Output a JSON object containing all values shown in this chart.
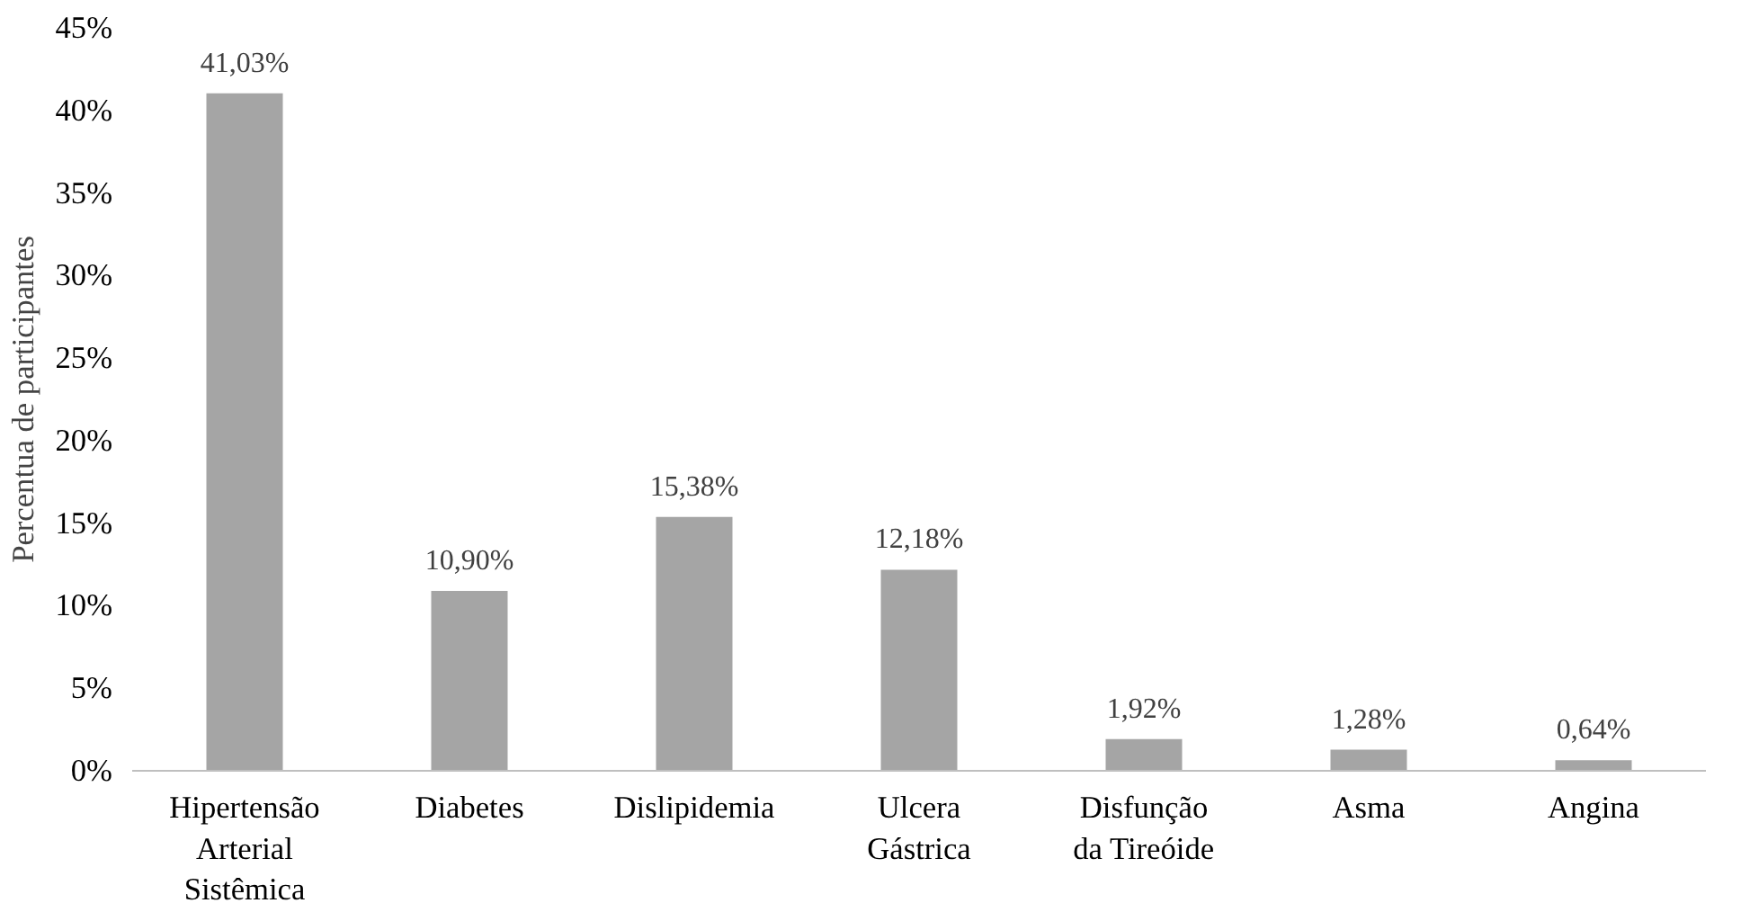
{
  "chart_data": {
    "type": "bar",
    "ylabel": "Percentua de participantes",
    "categories": [
      "Hipertensão\nArterial\nSistêmica",
      "Diabetes",
      "Dislipidemia",
      "Ulcera\nGástrica",
      "Disfunção\nda Tireóide",
      "Asma",
      "Angina"
    ],
    "values": [
      41.03,
      10.9,
      15.38,
      12.18,
      1.92,
      1.28,
      0.64
    ],
    "value_labels": [
      "41,03%",
      "10,90%",
      "15,38%",
      "12,18%",
      "1,92%",
      "1,28%",
      "0,64%"
    ],
    "color": "#a5a5a5",
    "ylim": [
      0,
      45
    ],
    "yticks": [
      {
        "value": 0,
        "label": "0%"
      },
      {
        "value": 5,
        "label": "5%"
      },
      {
        "value": 10,
        "label": "10%"
      },
      {
        "value": 15,
        "label": "15%"
      },
      {
        "value": 20,
        "label": "20%"
      },
      {
        "value": 25,
        "label": "25%"
      },
      {
        "value": 30,
        "label": "30%"
      },
      {
        "value": 35,
        "label": "35%"
      },
      {
        "value": 40,
        "label": "40%"
      },
      {
        "value": 45,
        "label": "45%"
      }
    ],
    "grid": false
  }
}
